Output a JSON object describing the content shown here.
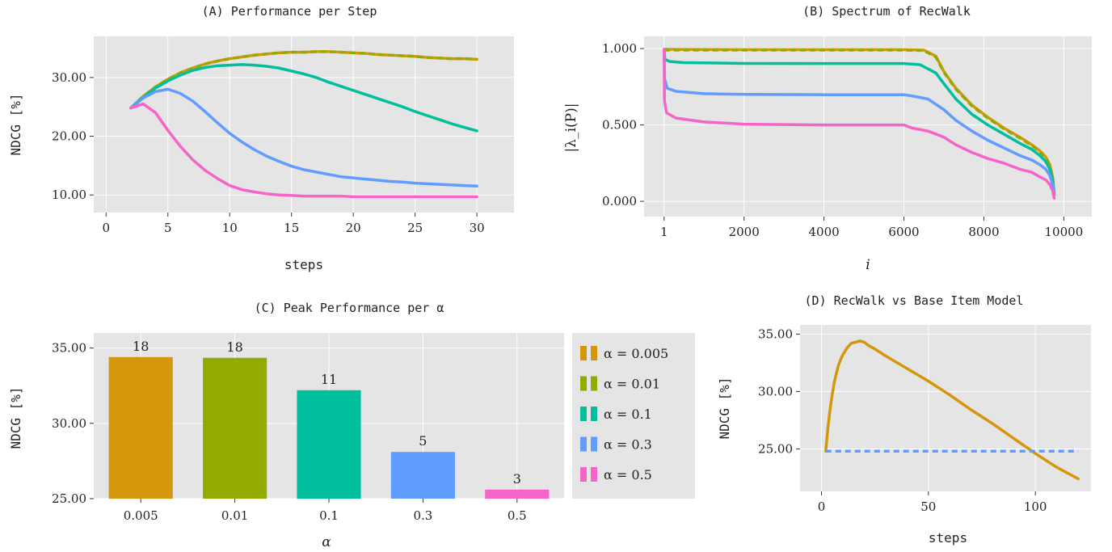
{
  "colors": {
    "a0005": "#d4960a",
    "a001": "#93ab00",
    "a01": "#00bf9c",
    "a03": "#619cff",
    "a05": "#f564c8",
    "panel": "#e5e5e5"
  },
  "chart_data": [
    {
      "id": "A",
      "type": "line",
      "title": "(A) Performance per Step",
      "xlabel": "steps",
      "ylabel": "NDCG [%]",
      "xlim": [
        -1,
        33
      ],
      "ylim": [
        7,
        37
      ],
      "xticks": [
        0,
        5,
        10,
        15,
        20,
        25,
        30
      ],
      "yticks": [
        10,
        20,
        30
      ],
      "ytick_labels": [
        "10.00",
        "20.00",
        "30.00"
      ],
      "grid": true,
      "x": [
        2,
        3,
        4,
        5,
        6,
        7,
        8,
        9,
        10,
        11,
        12,
        13,
        14,
        15,
        16,
        17,
        18,
        19,
        20,
        21,
        22,
        23,
        24,
        25,
        26,
        27,
        28,
        29,
        30
      ],
      "series": [
        {
          "key": "a0005",
          "dashed": false,
          "values": [
            24.8,
            26.8,
            28.4,
            29.7,
            30.8,
            31.6,
            32.3,
            32.8,
            33.2,
            33.5,
            33.8,
            34.0,
            34.2,
            34.3,
            34.3,
            34.4,
            34.4,
            34.3,
            34.2,
            34.1,
            33.9,
            33.8,
            33.7,
            33.6,
            33.4,
            33.3,
            33.2,
            33.2,
            33.1
          ]
        },
        {
          "key": "a001",
          "dashed": true,
          "values": [
            24.8,
            26.8,
            28.4,
            29.7,
            30.8,
            31.6,
            32.3,
            32.8,
            33.2,
            33.5,
            33.8,
            34.0,
            34.2,
            34.3,
            34.3,
            34.4,
            34.4,
            34.3,
            34.2,
            34.1,
            33.9,
            33.8,
            33.7,
            33.6,
            33.4,
            33.3,
            33.2,
            33.2,
            33.1
          ]
        },
        {
          "key": "a01",
          "dashed": false,
          "values": [
            24.8,
            26.6,
            28.2,
            29.4,
            30.4,
            31.2,
            31.7,
            32.0,
            32.1,
            32.2,
            32.1,
            31.9,
            31.6,
            31.1,
            30.6,
            30.0,
            29.2,
            28.5,
            27.8,
            27.1,
            26.4,
            25.7,
            25.0,
            24.2,
            23.5,
            22.8,
            22.1,
            21.5,
            20.9
          ]
        },
        {
          "key": "a03",
          "dashed": false,
          "values": [
            24.8,
            26.5,
            27.6,
            28.0,
            27.3,
            26.0,
            24.2,
            22.3,
            20.5,
            19.0,
            17.7,
            16.6,
            15.7,
            14.9,
            14.3,
            13.9,
            13.5,
            13.1,
            12.9,
            12.7,
            12.5,
            12.3,
            12.2,
            12.0,
            11.9,
            11.8,
            11.7,
            11.6,
            11.5
          ]
        },
        {
          "key": "a05",
          "dashed": false,
          "values": [
            24.8,
            25.5,
            24.0,
            21.0,
            18.3,
            16.0,
            14.2,
            12.8,
            11.6,
            10.9,
            10.5,
            10.2,
            10.0,
            9.9,
            9.8,
            9.8,
            9.8,
            9.8,
            9.7,
            9.7,
            9.7,
            9.7,
            9.7,
            9.7,
            9.7,
            9.7,
            9.7,
            9.7,
            9.7
          ]
        }
      ]
    },
    {
      "id": "B",
      "type": "line",
      "title": "(B) Spectrum of RecWalk",
      "xlabel": "i",
      "ylabel": "|λ_i(P)|",
      "xlim": [
        -500,
        10700
      ],
      "ylim": [
        -0.1,
        1.08
      ],
      "xticks": [
        1,
        2000,
        4000,
        6000,
        8000,
        10000
      ],
      "xtick_labels": [
        "1",
        "2000",
        "4000",
        "6000",
        "8000",
        "10000"
      ],
      "yticks": [
        0.0,
        0.5,
        1.0
      ],
      "ytick_labels": [
        "0.000",
        "0.500",
        "1.000"
      ],
      "grid": true,
      "series": [
        {
          "key": "a0005",
          "dashed": false,
          "points": [
            [
              1,
              0.995
            ],
            [
              500,
              0.994
            ],
            [
              2000,
              0.993
            ],
            [
              4000,
              0.993
            ],
            [
              6000,
              0.993
            ],
            [
              6500,
              0.99
            ],
            [
              6800,
              0.95
            ],
            [
              7000,
              0.85
            ],
            [
              7300,
              0.74
            ],
            [
              7700,
              0.63
            ],
            [
              8100,
              0.55
            ],
            [
              8500,
              0.48
            ],
            [
              8900,
              0.42
            ],
            [
              9200,
              0.37
            ],
            [
              9400,
              0.33
            ],
            [
              9550,
              0.29
            ],
            [
              9650,
              0.24
            ],
            [
              9720,
              0.16
            ],
            [
              9760,
              0.05
            ]
          ]
        },
        {
          "key": "a001",
          "dashed": true,
          "points": [
            [
              1,
              0.99
            ],
            [
              500,
              0.99
            ],
            [
              2000,
              0.99
            ],
            [
              4000,
              0.99
            ],
            [
              6000,
              0.99
            ],
            [
              6500,
              0.987
            ],
            [
              6800,
              0.945
            ],
            [
              7000,
              0.845
            ],
            [
              7300,
              0.735
            ],
            [
              7700,
              0.625
            ],
            [
              8100,
              0.545
            ],
            [
              8500,
              0.475
            ],
            [
              8900,
              0.415
            ],
            [
              9200,
              0.365
            ],
            [
              9400,
              0.325
            ],
            [
              9550,
              0.285
            ],
            [
              9650,
              0.235
            ],
            [
              9720,
              0.155
            ],
            [
              9760,
              0.05
            ]
          ]
        },
        {
          "key": "a01",
          "dashed": false,
          "points": [
            [
              1,
              0.99
            ],
            [
              20,
              0.93
            ],
            [
              150,
              0.915
            ],
            [
              500,
              0.908
            ],
            [
              2000,
              0.903
            ],
            [
              4000,
              0.902
            ],
            [
              6000,
              0.902
            ],
            [
              6400,
              0.895
            ],
            [
              6800,
              0.84
            ],
            [
              7000,
              0.77
            ],
            [
              7300,
              0.67
            ],
            [
              7700,
              0.57
            ],
            [
              8100,
              0.5
            ],
            [
              8500,
              0.44
            ],
            [
              8900,
              0.38
            ],
            [
              9200,
              0.34
            ],
            [
              9400,
              0.3
            ],
            [
              9550,
              0.26
            ],
            [
              9650,
              0.21
            ],
            [
              9720,
              0.14
            ],
            [
              9760,
              0.05
            ]
          ]
        },
        {
          "key": "a03",
          "dashed": false,
          "points": [
            [
              1,
              0.99
            ],
            [
              15,
              0.8
            ],
            [
              80,
              0.74
            ],
            [
              300,
              0.72
            ],
            [
              1000,
              0.705
            ],
            [
              2000,
              0.7
            ],
            [
              4000,
              0.698
            ],
            [
              6000,
              0.698
            ],
            [
              6200,
              0.69
            ],
            [
              6600,
              0.67
            ],
            [
              7000,
              0.6
            ],
            [
              7300,
              0.53
            ],
            [
              7700,
              0.46
            ],
            [
              8100,
              0.4
            ],
            [
              8500,
              0.35
            ],
            [
              8900,
              0.3
            ],
            [
              9200,
              0.27
            ],
            [
              9400,
              0.24
            ],
            [
              9550,
              0.21
            ],
            [
              9650,
              0.17
            ],
            [
              9720,
              0.11
            ],
            [
              9760,
              0.04
            ]
          ]
        },
        {
          "key": "a05",
          "dashed": false,
          "points": [
            [
              1,
              0.99
            ],
            [
              10,
              0.66
            ],
            [
              60,
              0.58
            ],
            [
              300,
              0.545
            ],
            [
              1000,
              0.52
            ],
            [
              2000,
              0.505
            ],
            [
              4000,
              0.5
            ],
            [
              6000,
              0.5
            ],
            [
              6200,
              0.48
            ],
            [
              6600,
              0.46
            ],
            [
              7000,
              0.42
            ],
            [
              7300,
              0.37
            ],
            [
              7700,
              0.32
            ],
            [
              8100,
              0.28
            ],
            [
              8500,
              0.25
            ],
            [
              8900,
              0.21
            ],
            [
              9200,
              0.19
            ],
            [
              9400,
              0.16
            ],
            [
              9550,
              0.14
            ],
            [
              9650,
              0.11
            ],
            [
              9720,
              0.07
            ],
            [
              9760,
              0.02
            ]
          ]
        }
      ]
    },
    {
      "id": "C",
      "type": "bar",
      "title": "(C) Peak Performance per α",
      "xlabel": "α",
      "ylabel": "NDCG [%]",
      "ylim": [
        25,
        36
      ],
      "yticks": [
        25,
        30,
        35
      ],
      "ytick_labels": [
        "25.00",
        "30.00",
        "35.00"
      ],
      "categories": [
        "0.005",
        "0.01",
        "0.1",
        "0.3",
        "0.5"
      ],
      "values": [
        34.4,
        34.35,
        32.2,
        28.1,
        25.6
      ],
      "bar_labels": [
        "18",
        "18",
        "11",
        "5",
        "3"
      ],
      "keys": [
        "a0005",
        "a001",
        "a01",
        "a03",
        "a05"
      ],
      "grid": true,
      "legend": {
        "placement": "right",
        "entries": [
          "α = 0.005",
          "α = 0.01",
          "α = 0.1",
          "α = 0.3",
          "α = 0.5"
        ]
      }
    },
    {
      "id": "D",
      "type": "line",
      "title": "(D) RecWalk vs Base Item Model",
      "xlabel": "steps",
      "ylabel": "NDCG [%]",
      "xlim": [
        -10,
        126
      ],
      "ylim": [
        21.3,
        35.8
      ],
      "xticks": [
        0,
        50,
        100
      ],
      "yticks": [
        25,
        30,
        35
      ],
      "ytick_labels": [
        "25.00",
        "30.00",
        "35.00"
      ],
      "grid": true,
      "series": [
        {
          "key": "a0005",
          "dashed": false,
          "points": [
            [
              2,
              24.8
            ],
            [
              3,
              26.8
            ],
            [
              4,
              28.4
            ],
            [
              5,
              29.7
            ],
            [
              6,
              30.8
            ],
            [
              7,
              31.6
            ],
            [
              8,
              32.3
            ],
            [
              9,
              32.8
            ],
            [
              10,
              33.2
            ],
            [
              12,
              33.8
            ],
            [
              14,
              34.2
            ],
            [
              16,
              34.3
            ],
            [
              18,
              34.4
            ],
            [
              20,
              34.3
            ],
            [
              22,
              34.0
            ],
            [
              25,
              33.7
            ],
            [
              30,
              33.1
            ],
            [
              40,
              32.0
            ],
            [
              50,
              30.9
            ],
            [
              60,
              29.7
            ],
            [
              70,
              28.4
            ],
            [
              80,
              27.2
            ],
            [
              90,
              25.9
            ],
            [
              100,
              24.6
            ],
            [
              110,
              23.4
            ],
            [
              120,
              22.4
            ]
          ]
        },
        {
          "key": "a03",
          "dashed": true,
          "points": [
            [
              2,
              24.8
            ],
            [
              120,
              24.8
            ]
          ]
        }
      ]
    }
  ]
}
